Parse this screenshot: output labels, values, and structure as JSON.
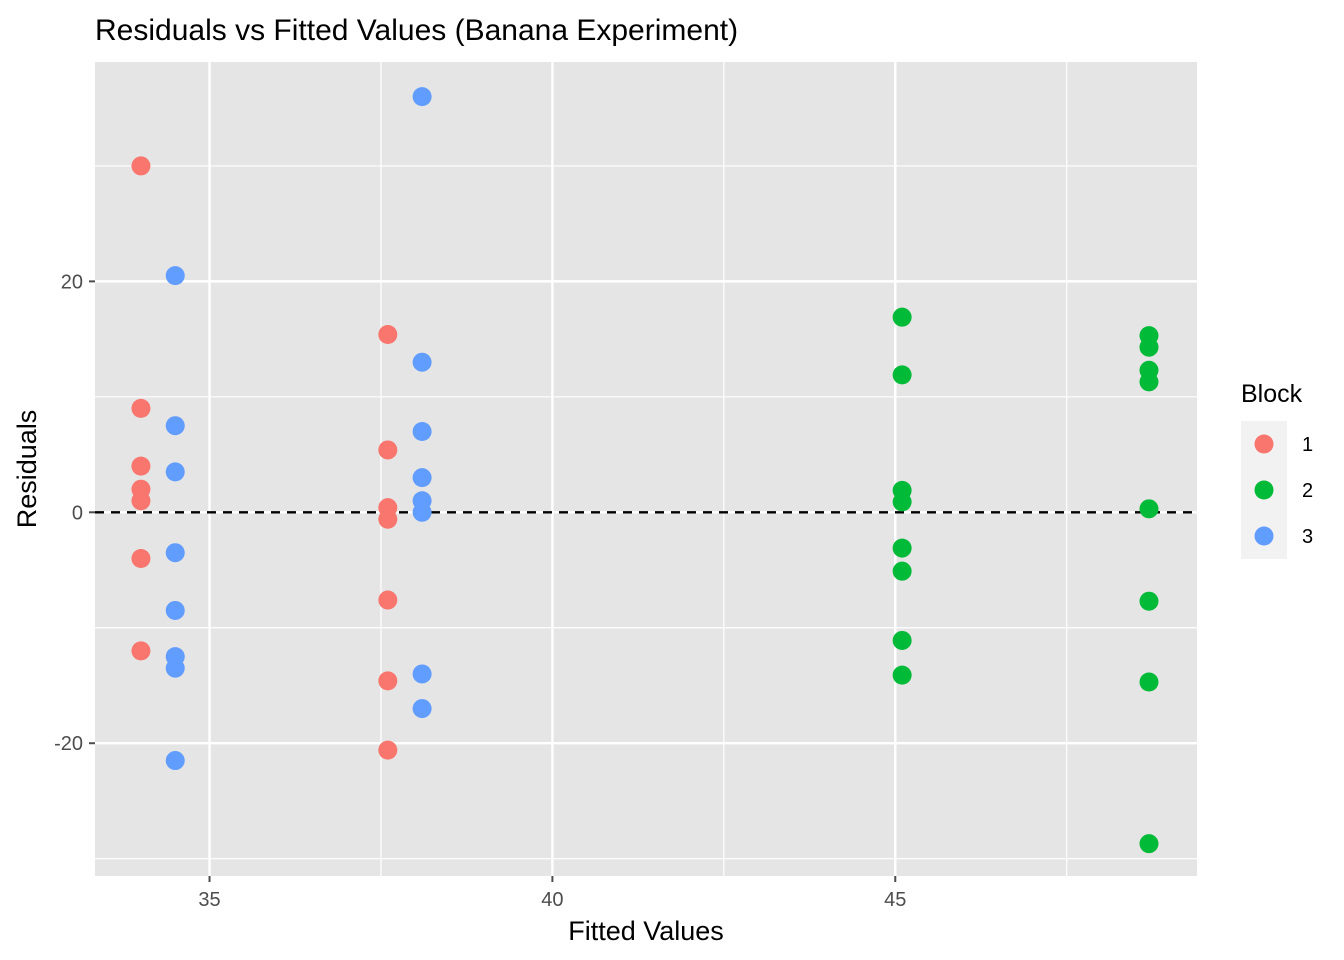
{
  "chart_data": {
    "type": "scatter",
    "title": "Residuals vs Fitted Values (Banana Experiment)",
    "xlabel": "Fitted Values",
    "ylabel": "Residuals",
    "xlim": [
      33.33,
      49.4
    ],
    "ylim": [
      -31.5,
      39.0
    ],
    "x_ticks": [
      35,
      40,
      45
    ],
    "x_tick_labels": [
      "35",
      "40",
      "45"
    ],
    "x_minor_ticks": [
      37.5,
      42.5,
      47.5
    ],
    "y_ticks": [
      -20,
      0,
      20
    ],
    "y_tick_labels": [
      "-20",
      "0",
      "20"
    ],
    "y_minor_ticks": [
      -30,
      -10,
      10,
      30
    ],
    "grid": true,
    "reference_line": {
      "y": 0,
      "style": "dashed",
      "color": "#000000"
    },
    "legend": {
      "title": "Block",
      "placement": "right",
      "entries": [
        "1",
        "2",
        "3"
      ]
    },
    "series": [
      {
        "name": "1",
        "color": "#F8766D",
        "points": [
          {
            "x": 34.0,
            "y": 30.0
          },
          {
            "x": 34.0,
            "y": 9.0
          },
          {
            "x": 34.0,
            "y": 4.0
          },
          {
            "x": 34.0,
            "y": 2.0
          },
          {
            "x": 34.0,
            "y": 1.0
          },
          {
            "x": 34.0,
            "y": -4.0
          },
          {
            "x": 34.0,
            "y": -12.0
          },
          {
            "x": 37.6,
            "y": 15.4
          },
          {
            "x": 37.6,
            "y": 5.4
          },
          {
            "x": 37.6,
            "y": 0.4
          },
          {
            "x": 37.6,
            "y": -0.6
          },
          {
            "x": 37.6,
            "y": -7.6
          },
          {
            "x": 37.6,
            "y": -14.6
          },
          {
            "x": 37.6,
            "y": -20.6
          }
        ]
      },
      {
        "name": "2",
        "color": "#00BA38",
        "points": [
          {
            "x": 45.1,
            "y": 16.9
          },
          {
            "x": 45.1,
            "y": 11.9
          },
          {
            "x": 45.1,
            "y": 1.9
          },
          {
            "x": 45.1,
            "y": 0.9
          },
          {
            "x": 45.1,
            "y": -3.1
          },
          {
            "x": 45.1,
            "y": -5.1
          },
          {
            "x": 45.1,
            "y": -11.1
          },
          {
            "x": 45.1,
            "y": -14.1
          },
          {
            "x": 48.7,
            "y": 15.3
          },
          {
            "x": 48.7,
            "y": 14.3
          },
          {
            "x": 48.7,
            "y": 12.3
          },
          {
            "x": 48.7,
            "y": 11.3
          },
          {
            "x": 48.7,
            "y": 0.3
          },
          {
            "x": 48.7,
            "y": -7.7
          },
          {
            "x": 48.7,
            "y": -14.7
          },
          {
            "x": 48.7,
            "y": -28.7
          }
        ]
      },
      {
        "name": "3",
        "color": "#619CFF",
        "points": [
          {
            "x": 34.5,
            "y": 20.5
          },
          {
            "x": 34.5,
            "y": 7.5
          },
          {
            "x": 34.5,
            "y": 3.5
          },
          {
            "x": 34.5,
            "y": -3.5
          },
          {
            "x": 34.5,
            "y": -8.5
          },
          {
            "x": 34.5,
            "y": -12.5
          },
          {
            "x": 34.5,
            "y": -13.5
          },
          {
            "x": 34.5,
            "y": -21.5
          },
          {
            "x": 38.1,
            "y": 36.0
          },
          {
            "x": 38.1,
            "y": 13.0
          },
          {
            "x": 38.1,
            "y": 7.0
          },
          {
            "x": 38.1,
            "y": 3.0
          },
          {
            "x": 38.1,
            "y": 1.0
          },
          {
            "x": 38.1,
            "y": 0.0
          },
          {
            "x": 38.1,
            "y": -14.0
          },
          {
            "x": 38.1,
            "y": -17.0
          }
        ]
      }
    ],
    "style": {
      "panel_background": "#E5E5E5",
      "grid_color": "#FFFFFF",
      "tick_color": "#4D4D4D"
    }
  }
}
